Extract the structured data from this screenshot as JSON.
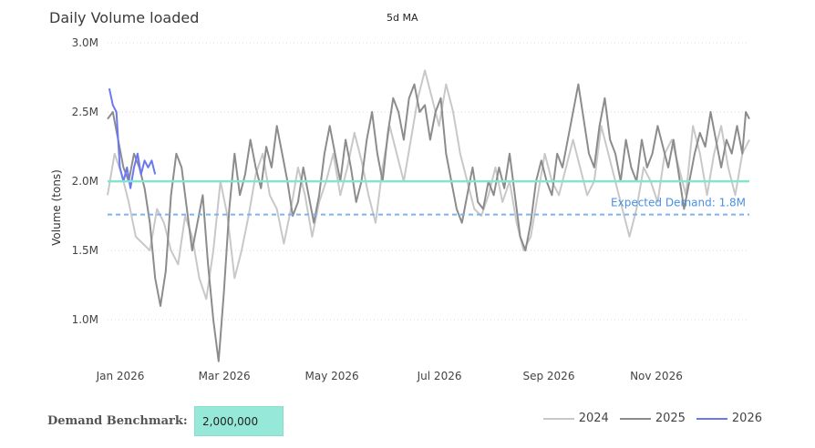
{
  "header": {
    "title": "Daily Volume loaded",
    "subtitle": "5d MA"
  },
  "benchmark": {
    "label": "Demand Benchmark:",
    "value": "2,000,000"
  },
  "colors": {
    "s2024": "#c8c8c8",
    "s2025": "#8c8c8c",
    "s2026": "#6b78f0",
    "benchmark_line": "#86e3cf",
    "expected_line": "#7fb2f0",
    "expected_text": "#4a90e2",
    "grid": "#d9d9d9"
  },
  "chart_data": {
    "type": "line",
    "title": "Daily Volume loaded",
    "subtitle": "5d MA",
    "ylabel": "Volume (tons)",
    "xlabel": "",
    "ylim": [
      0.6,
      3.0
    ],
    "y_ticks": [
      1.0,
      1.5,
      2.0,
      2.5,
      3.0
    ],
    "y_tick_labels": [
      "1.0M",
      "1.5M",
      "2.0M",
      "2.5M",
      "3.0M"
    ],
    "x_ticks": [
      "Jan 2026",
      "Mar 2026",
      "May 2026",
      "Jul 2026",
      "Sep 2026",
      "Nov 2026"
    ],
    "x_tick_days": [
      0,
      59,
      120,
      181,
      243,
      304
    ],
    "x_range_days": [
      0,
      364
    ],
    "grid": "horizontal dotted",
    "legend": "bottom-right",
    "reference_lines": [
      {
        "name": "Demand Benchmark",
        "value": 2.0,
        "style": "solid"
      },
      {
        "name": "Expected Demand",
        "value": 1.76,
        "style": "dashed",
        "label": "Expected Demand: 1.8M"
      }
    ],
    "series": [
      {
        "name": "2024",
        "color": "#c8c8c8",
        "points": [
          [
            0,
            1.9
          ],
          [
            4,
            2.2
          ],
          [
            8,
            2.05
          ],
          [
            12,
            1.85
          ],
          [
            16,
            1.6
          ],
          [
            20,
            1.55
          ],
          [
            24,
            1.5
          ],
          [
            28,
            1.8
          ],
          [
            32,
            1.7
          ],
          [
            36,
            1.5
          ],
          [
            40,
            1.4
          ],
          [
            44,
            1.75
          ],
          [
            48,
            1.6
          ],
          [
            52,
            1.3
          ],
          [
            56,
            1.15
          ],
          [
            60,
            1.5
          ],
          [
            64,
            2.0
          ],
          [
            68,
            1.75
          ],
          [
            72,
            1.3
          ],
          [
            76,
            1.5
          ],
          [
            80,
            1.75
          ],
          [
            84,
            2.05
          ],
          [
            88,
            2.2
          ],
          [
            92,
            1.9
          ],
          [
            96,
            1.8
          ],
          [
            100,
            1.55
          ],
          [
            104,
            1.8
          ],
          [
            108,
            2.1
          ],
          [
            112,
            1.9
          ],
          [
            116,
            1.6
          ],
          [
            120,
            1.85
          ],
          [
            124,
            2.0
          ],
          [
            128,
            2.2
          ],
          [
            132,
            1.9
          ],
          [
            136,
            2.1
          ],
          [
            140,
            2.35
          ],
          [
            144,
            2.15
          ],
          [
            148,
            1.9
          ],
          [
            152,
            1.7
          ],
          [
            156,
            2.1
          ],
          [
            160,
            2.4
          ],
          [
            164,
            2.2
          ],
          [
            168,
            2.0
          ],
          [
            172,
            2.3
          ],
          [
            176,
            2.6
          ],
          [
            180,
            2.8
          ],
          [
            184,
            2.6
          ],
          [
            188,
            2.4
          ],
          [
            192,
            2.7
          ],
          [
            196,
            2.5
          ],
          [
            200,
            2.2
          ],
          [
            204,
            2.0
          ],
          [
            208,
            1.8
          ],
          [
            212,
            1.75
          ],
          [
            216,
            1.9
          ],
          [
            220,
            2.1
          ],
          [
            224,
            1.85
          ],
          [
            228,
            2.0
          ],
          [
            232,
            1.7
          ],
          [
            236,
            1.5
          ],
          [
            240,
            1.6
          ],
          [
            244,
            1.9
          ],
          [
            248,
            2.2
          ],
          [
            252,
            2.0
          ],
          [
            256,
            1.9
          ],
          [
            260,
            2.1
          ],
          [
            264,
            2.3
          ],
          [
            268,
            2.1
          ],
          [
            272,
            1.9
          ],
          [
            276,
            2.0
          ],
          [
            280,
            2.4
          ],
          [
            284,
            2.2
          ],
          [
            288,
            2.0
          ],
          [
            292,
            1.8
          ],
          [
            296,
            1.6
          ],
          [
            300,
            1.8
          ],
          [
            304,
            2.1
          ],
          [
            308,
            2.0
          ],
          [
            312,
            1.85
          ],
          [
            316,
            2.2
          ],
          [
            320,
            2.3
          ],
          [
            324,
            2.1
          ],
          [
            328,
            1.9
          ],
          [
            332,
            2.4
          ],
          [
            336,
            2.2
          ],
          [
            340,
            1.9
          ],
          [
            344,
            2.2
          ],
          [
            348,
            2.4
          ],
          [
            352,
            2.1
          ],
          [
            356,
            1.9
          ],
          [
            360,
            2.2
          ],
          [
            364,
            2.3
          ]
        ]
      },
      {
        "name": "2025",
        "color": "#8c8c8c",
        "points": [
          [
            0,
            2.45
          ],
          [
            3,
            2.5
          ],
          [
            6,
            2.3
          ],
          [
            9,
            2.1
          ],
          [
            12,
            2.0
          ],
          [
            15,
            2.2
          ],
          [
            18,
            2.1
          ],
          [
            21,
            1.95
          ],
          [
            24,
            1.7
          ],
          [
            27,
            1.3
          ],
          [
            30,
            1.1
          ],
          [
            33,
            1.35
          ],
          [
            36,
            1.9
          ],
          [
            39,
            2.2
          ],
          [
            42,
            2.1
          ],
          [
            45,
            1.8
          ],
          [
            48,
            1.5
          ],
          [
            51,
            1.7
          ],
          [
            54,
            1.9
          ],
          [
            57,
            1.4
          ],
          [
            60,
            1.0
          ],
          [
            63,
            0.7
          ],
          [
            66,
            1.2
          ],
          [
            69,
            1.8
          ],
          [
            72,
            2.2
          ],
          [
            75,
            1.9
          ],
          [
            78,
            2.05
          ],
          [
            81,
            2.3
          ],
          [
            84,
            2.1
          ],
          [
            87,
            1.95
          ],
          [
            90,
            2.25
          ],
          [
            93,
            2.1
          ],
          [
            96,
            2.4
          ],
          [
            99,
            2.2
          ],
          [
            102,
            2.0
          ],
          [
            105,
            1.75
          ],
          [
            108,
            1.85
          ],
          [
            111,
            2.1
          ],
          [
            114,
            1.9
          ],
          [
            117,
            1.7
          ],
          [
            120,
            1.9
          ],
          [
            123,
            2.2
          ],
          [
            126,
            2.4
          ],
          [
            129,
            2.2
          ],
          [
            132,
            2.0
          ],
          [
            135,
            2.3
          ],
          [
            138,
            2.1
          ],
          [
            141,
            1.85
          ],
          [
            144,
            2.0
          ],
          [
            147,
            2.3
          ],
          [
            150,
            2.5
          ],
          [
            153,
            2.2
          ],
          [
            156,
            2.0
          ],
          [
            159,
            2.35
          ],
          [
            162,
            2.6
          ],
          [
            165,
            2.5
          ],
          [
            168,
            2.3
          ],
          [
            171,
            2.6
          ],
          [
            174,
            2.7
          ],
          [
            177,
            2.5
          ],
          [
            180,
            2.55
          ],
          [
            183,
            2.3
          ],
          [
            186,
            2.5
          ],
          [
            189,
            2.6
          ],
          [
            192,
            2.2
          ],
          [
            195,
            2.0
          ],
          [
            198,
            1.8
          ],
          [
            201,
            1.7
          ],
          [
            204,
            1.9
          ],
          [
            207,
            2.1
          ],
          [
            210,
            1.85
          ],
          [
            213,
            1.8
          ],
          [
            216,
            2.0
          ],
          [
            219,
            1.9
          ],
          [
            222,
            2.1
          ],
          [
            225,
            1.95
          ],
          [
            228,
            2.2
          ],
          [
            231,
            1.9
          ],
          [
            234,
            1.6
          ],
          [
            237,
            1.5
          ],
          [
            240,
            1.7
          ],
          [
            243,
            2.0
          ],
          [
            246,
            2.15
          ],
          [
            249,
            2.0
          ],
          [
            252,
            1.9
          ],
          [
            255,
            2.2
          ],
          [
            258,
            2.1
          ],
          [
            261,
            2.3
          ],
          [
            264,
            2.5
          ],
          [
            267,
            2.7
          ],
          [
            270,
            2.45
          ],
          [
            273,
            2.2
          ],
          [
            276,
            2.1
          ],
          [
            279,
            2.4
          ],
          [
            282,
            2.6
          ],
          [
            285,
            2.3
          ],
          [
            288,
            2.2
          ],
          [
            291,
            2.0
          ],
          [
            294,
            2.3
          ],
          [
            297,
            2.1
          ],
          [
            300,
            2.0
          ],
          [
            303,
            2.3
          ],
          [
            306,
            2.1
          ],
          [
            309,
            2.2
          ],
          [
            312,
            2.4
          ],
          [
            315,
            2.25
          ],
          [
            318,
            2.1
          ],
          [
            321,
            2.3
          ],
          [
            324,
            2.05
          ],
          [
            327,
            1.8
          ],
          [
            330,
            2.0
          ],
          [
            333,
            2.2
          ],
          [
            336,
            2.35
          ],
          [
            339,
            2.25
          ],
          [
            342,
            2.5
          ],
          [
            345,
            2.3
          ],
          [
            348,
            2.1
          ],
          [
            351,
            2.3
          ],
          [
            354,
            2.2
          ],
          [
            357,
            2.4
          ],
          [
            360,
            2.2
          ],
          [
            362,
            2.5
          ],
          [
            364,
            2.45
          ]
        ]
      },
      {
        "name": "2026",
        "color": "#6b78f0",
        "points": [
          [
            1,
            2.67
          ],
          [
            3,
            2.55
          ],
          [
            5,
            2.5
          ],
          [
            6,
            2.3
          ],
          [
            7,
            2.1
          ],
          [
            9,
            2.0
          ],
          [
            11,
            2.1
          ],
          [
            13,
            1.95
          ],
          [
            15,
            2.1
          ],
          [
            17,
            2.2
          ],
          [
            19,
            2.05
          ],
          [
            21,
            2.15
          ],
          [
            23,
            2.1
          ],
          [
            25,
            2.15
          ],
          [
            27,
            2.05
          ]
        ]
      }
    ]
  }
}
